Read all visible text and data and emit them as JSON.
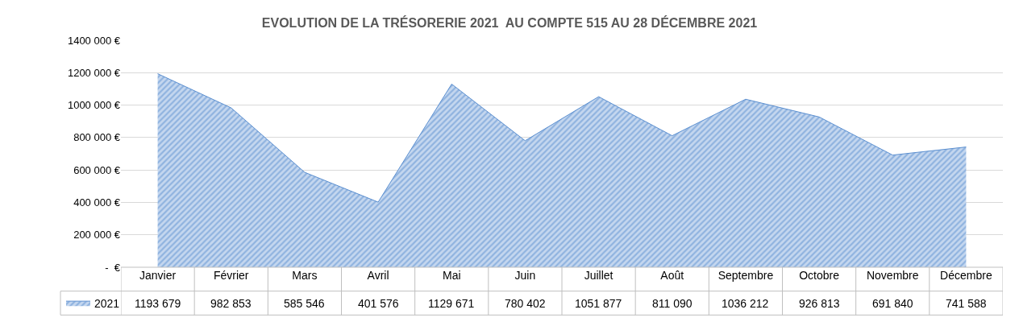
{
  "chart_data": {
    "type": "area",
    "title": "EVOLUTION DE LA TRÉSORERIE 2021  AU COMPTE 515 AU 28 DÉCEMBRE 2021",
    "categories": [
      "Janvier",
      "Février",
      "Mars",
      "Avril",
      "Mai",
      "Juin",
      "Juillet",
      "Août",
      "Septembre",
      "Octobre",
      "Novembre",
      "Décembre"
    ],
    "series": [
      {
        "name": "2021",
        "color": "#5b8fd0",
        "values": [
          1193679,
          982853,
          585546,
          401576,
          1129671,
          780402,
          1051877,
          811090,
          1036212,
          926813,
          691840,
          741588
        ]
      }
    ],
    "value_labels": [
      "1193 679",
      "982 853",
      "585 546",
      "401 576",
      "1129 671",
      "780 402",
      "1051 877",
      "811 090",
      "1036 212",
      "926 813",
      "691 840",
      "741 588"
    ],
    "ylim": [
      0,
      1400000
    ],
    "yticks": [
      {
        "value": 0,
        "label": "-  €"
      },
      {
        "value": 200000,
        "label": "200 000 €"
      },
      {
        "value": 400000,
        "label": "400 000 €"
      },
      {
        "value": 600000,
        "label": "600 000 €"
      },
      {
        "value": 800000,
        "label": "800 000 €"
      },
      {
        "value": 1000000,
        "label": "1000 000 €"
      },
      {
        "value": 1200000,
        "label": "1200 000 €"
      },
      {
        "value": 1400000,
        "label": "1400 000 €"
      }
    ],
    "grid": "y",
    "legend": "bottom left"
  }
}
